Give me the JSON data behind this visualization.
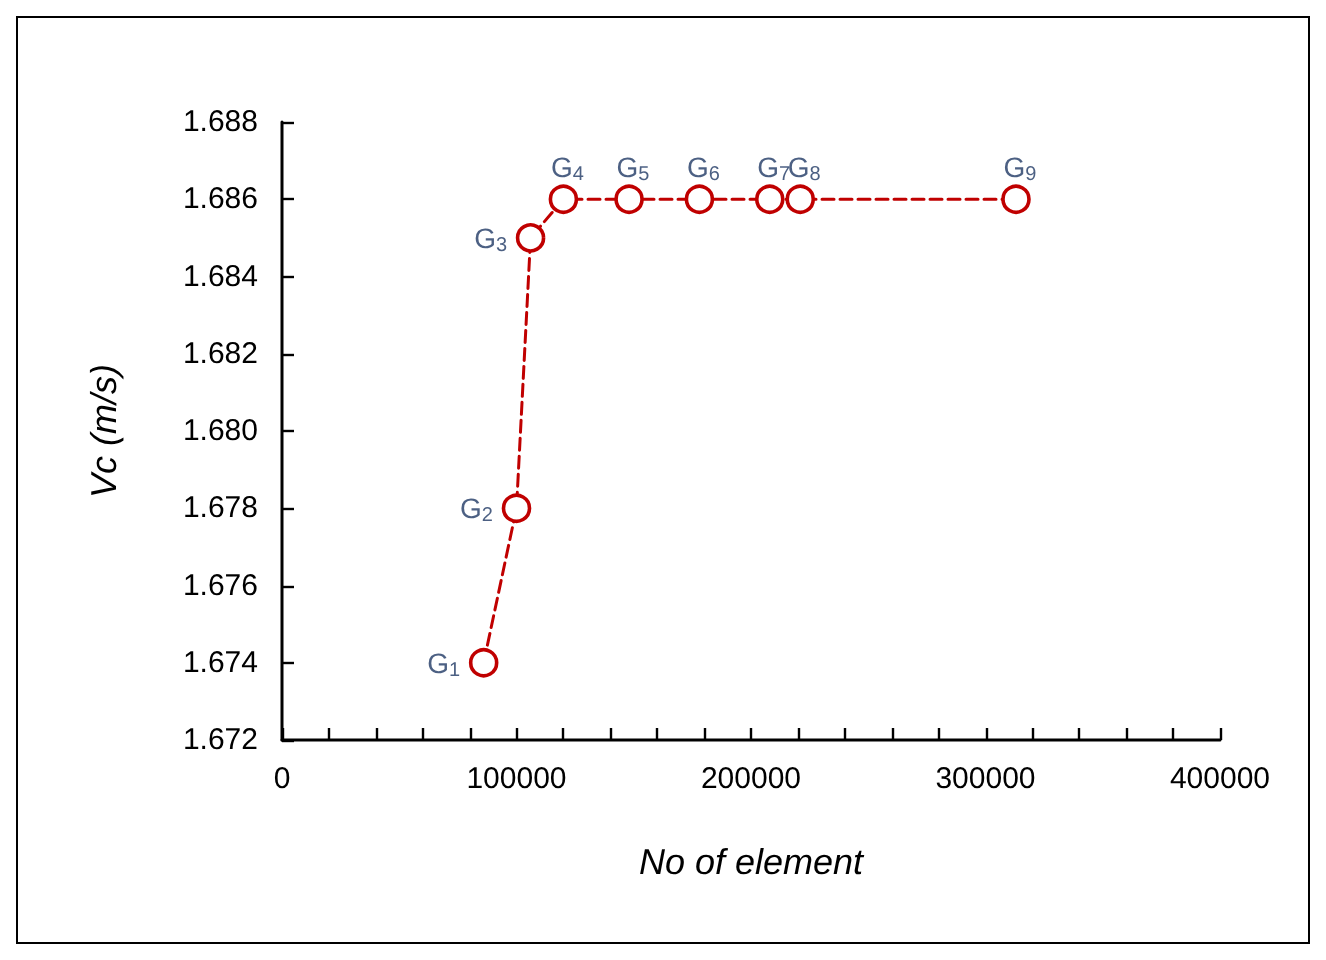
{
  "chart_data": {
    "type": "line",
    "xlabel": "No of element",
    "ylabel": "Vc (m/s)",
    "x": [
      86000,
      100000,
      106000,
      120000,
      148000,
      178000,
      208000,
      221000,
      313000
    ],
    "series": [
      {
        "color": "#c00000",
        "values": [
          1.674,
          1.678,
          1.685,
          1.686,
          1.686,
          1.686,
          1.686,
          1.686,
          1.686
        ]
      }
    ],
    "marker": "circle",
    "line_style": "dashed",
    "grid": false,
    "xlim": [
      0,
      400000
    ],
    "xticks": [
      0,
      {
        "value": 20000,
        "label": null
      },
      {
        "value": 40000,
        "label": null
      },
      {
        "value": 60000,
        "label": null
      },
      {
        "value": 80000,
        "label": null
      },
      100000,
      {
        "value": 120000,
        "label": null
      },
      {
        "value": 140000,
        "label": null
      },
      {
        "value": 160000,
        "label": null
      },
      {
        "value": 180000,
        "label": null
      },
      200000,
      {
        "value": 220000,
        "label": null
      },
      {
        "value": 240000,
        "label": null
      },
      {
        "value": 260000,
        "label": null
      },
      {
        "value": 280000,
        "label": null
      },
      300000,
      {
        "value": 320000,
        "label": null
      },
      {
        "value": 340000,
        "label": null
      },
      {
        "value": 360000,
        "label": null
      },
      {
        "value": 380000,
        "label": null
      },
      400000
    ],
    "ylim": [
      1.672,
      1.688
    ],
    "yticks": [
      1.672,
      1.674,
      1.676,
      1.678,
      {
        "value": 1.68,
        "label": "1.680"
      },
      1.682,
      1.684,
      1.686,
      1.688
    ],
    "annotations": [
      {
        "text": "G$_{1}$",
        "x": 86000,
        "y": 1.674
      },
      {
        "text": "G$_{2}$",
        "x": 100000,
        "y": 1.678
      },
      {
        "text": "G$_{3}$",
        "x": 106000,
        "y": 1.685
      },
      {
        "text": "G$_{4}$",
        "x": 120000,
        "y": 1.686
      },
      {
        "text": "G$_{5}$",
        "x": 148000,
        "y": 1.686
      },
      {
        "text": "G$_{6}$",
        "x": 178000,
        "y": 1.686
      },
      {
        "text": "G$_{7}$",
        "x": 208000,
        "y": 1.686
      },
      {
        "text": "G$_{8}$",
        "x": 221000,
        "y": 1.686
      },
      {
        "text": "G$_{9}$",
        "x": 313000,
        "y": 1.686
      }
    ]
  }
}
